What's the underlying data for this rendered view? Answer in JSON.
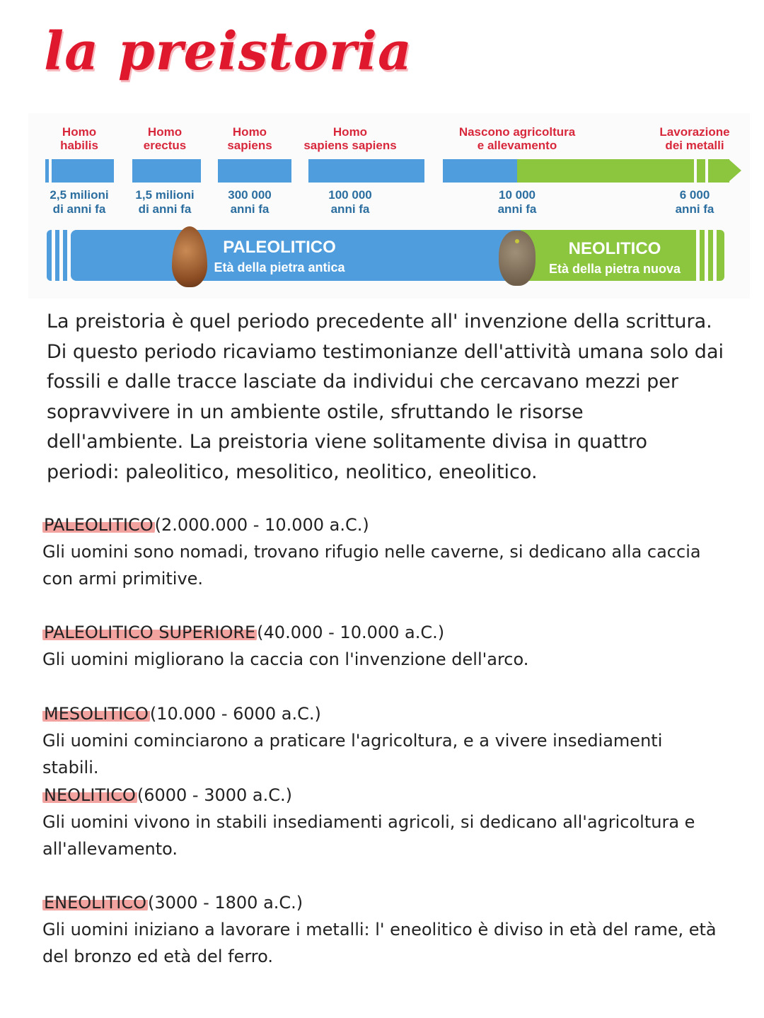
{
  "title": "la preistoria",
  "timeline": {
    "events": [
      "Homo\nhabilis",
      "Homo\nerectus",
      "Homo\nsapiens",
      "Homo\nsapiens sapiens",
      "Nascono agricoltura\ne allevamento",
      "Lavorazione\ndei metalli"
    ],
    "dates": [
      "2,5 milioni\ndi anni fa",
      "1,5 milioni\ndi anni fa",
      "300 000\nanni fa",
      "100 000\nanni fa",
      "10 000\nanni fa",
      "6 000\nanni fa"
    ],
    "periods": [
      {
        "name": "PALEOLITICO",
        "subtitle": "Età della pietra antica",
        "color": "#4f9ddd"
      },
      {
        "name": "NEOLITICO",
        "subtitle": "Età della pietra nuova",
        "color": "#8cc63f"
      }
    ]
  },
  "intro": "La preistoria  è quel periodo precedente all' invenzione della scrittura. Di questo periodo ricaviamo testimonianze dell'attività umana solo dai fossili e dalle tracce lasciate da individui che cercavano mezzi per sopravvivere in un ambiente ostile, sfruttando le risorse dell'ambiente. La preistoria viene solitamente divisa in quattro periodi: paleolitico, mesolitico, neolitico, eneolitico.",
  "sections": [
    {
      "heading": "PALEOLITICO",
      "range": "(2.000.000 - 10.000 a.C.)",
      "text": "Gli uomini sono nomadi, trovano rifugio nelle caverne, si dedicano alla caccia con armi primitive."
    },
    {
      "heading": "PALEOLITICO SUPERIORE",
      "range": "(40.000 - 10.000 a.C.)",
      "text": "Gli uomini migliorano la caccia con l'invenzione dell'arco."
    },
    {
      "heading": "MESOLITICO",
      "range": "(10.000 - 6000 a.C.)",
      "text": "Gli uomini cominciarono a praticare l'agricoltura, e a vivere insediamenti stabili."
    },
    {
      "heading": "NEOLITICO",
      "range": "(6000 - 3000 a.C.)",
      "text": "Gli uomini vivono in stabili insediamenti agricoli, si dedicano all'agricoltura e all'allevamento."
    },
    {
      "heading": "ENEOLITICO",
      "range": "(3000 - 1800 a.C.)",
      "text": "Gli uomini iniziano a lavorare i metalli: l' eneolitico è diviso in età del rame, età del bronzo ed età del ferro."
    }
  ],
  "colors": {
    "title": "#e0182d",
    "highlight": "#f2a3a0",
    "blue": "#4f9ddd",
    "green": "#8cc63f"
  }
}
